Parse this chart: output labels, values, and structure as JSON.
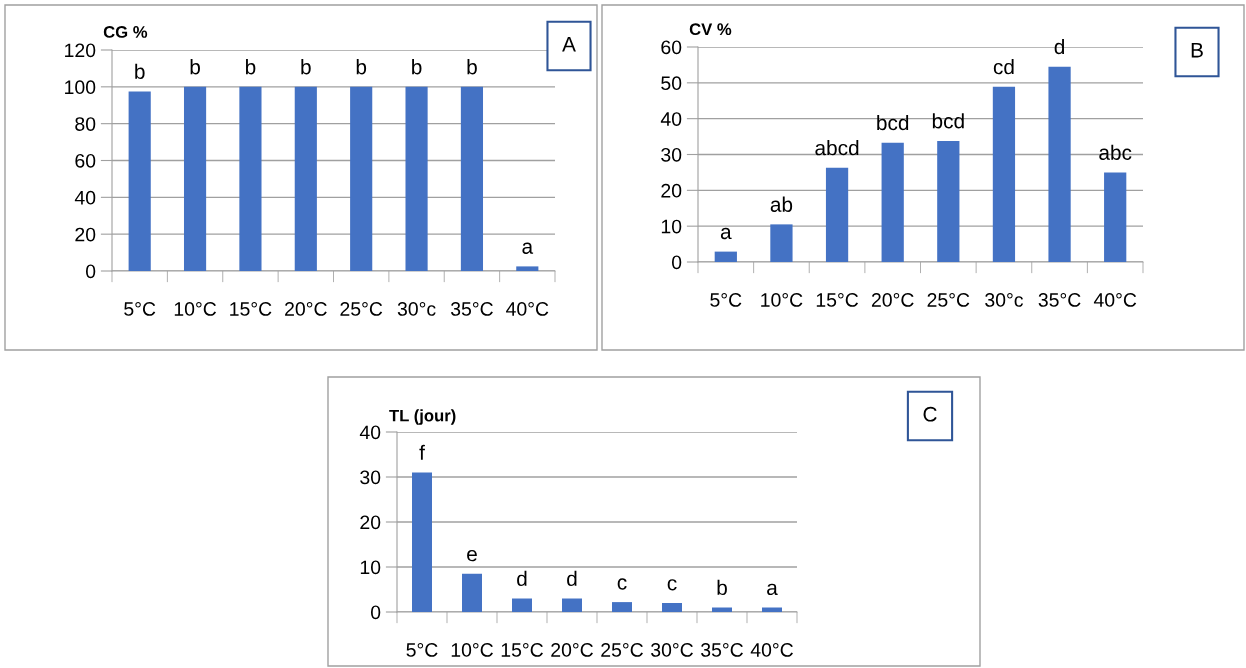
{
  "chart_data": [
    {
      "type": "bar",
      "ylabel": "CG %",
      "categories": [
        "5°C",
        "10°C",
        "15°C",
        "20°C",
        "25°C",
        "30°c",
        "35°C",
        "40°C"
      ],
      "values": [
        97.5,
        100,
        100,
        100,
        100,
        100,
        100,
        2.5
      ],
      "color": "#4472c4",
      "ylim": [
        0,
        120
      ],
      "yticks": [
        0,
        20,
        40,
        60,
        80,
        100,
        120
      ],
      "grid": "y",
      "annotations": [
        "A",
        {
          "text": "b",
          "x": "5°C",
          "y": 97.5
        },
        {
          "text": "b",
          "x": "10°C",
          "y": 100
        },
        {
          "text": "b",
          "x": "15°C",
          "y": 100
        },
        {
          "text": "b",
          "x": "20°C",
          "y": 100
        },
        {
          "text": "b",
          "x": "25°C",
          "y": 100
        },
        {
          "text": "b",
          "x": "30°c",
          "y": 100
        },
        {
          "text": "b",
          "x": "35°C",
          "y": 100
        },
        {
          "text": "a",
          "x": "40°C",
          "y": 2.5
        }
      ]
    },
    {
      "type": "bar",
      "ylabel": "CV %",
      "categories": [
        "5°C",
        "10°C",
        "15°C",
        "20°C",
        "25°C",
        "30°c",
        "35°C",
        "40°C"
      ],
      "values": [
        2.9,
        10.5,
        26.3,
        33.3,
        33.8,
        48.9,
        54.5,
        25
      ],
      "color": "#4472c4",
      "ylim": [
        0,
        60
      ],
      "yticks": [
        0,
        10,
        20,
        30,
        40,
        50,
        60
      ],
      "grid": "y",
      "annotations": [
        "B",
        {
          "text": "a",
          "x": "5°C",
          "y": 2.9
        },
        {
          "text": "ab",
          "x": "10°C",
          "y": 10.5
        },
        {
          "text": "abcd",
          "x": "15°C",
          "y": 26.3
        },
        {
          "text": "bcd",
          "x": "20°C",
          "y": 33.3
        },
        {
          "text": "bcd",
          "x": "25°C",
          "y": 33.8
        },
        {
          "text": "cd",
          "x": "30°c",
          "y": 48.9
        },
        {
          "text": "d",
          "x": "35°C",
          "y": 54.5
        },
        {
          "text": "abc",
          "x": "40°C",
          "y": 25
        }
      ]
    },
    {
      "type": "bar",
      "ylabel": "TL (jour)",
      "categories": [
        "5°C",
        "10°C",
        "15°C",
        "20°C",
        "25°C",
        "30°C",
        "35°C",
        "40°C"
      ],
      "values": [
        31,
        8.5,
        3,
        3,
        2.2,
        2,
        1,
        1
      ],
      "color": "#4472c4",
      "ylim": [
        0,
        40
      ],
      "yticks": [
        0,
        10,
        20,
        30,
        40
      ],
      "grid": "y",
      "annotations": [
        "C",
        {
          "text": "f",
          "x": "5°C",
          "y": 31
        },
        {
          "text": "e",
          "x": "10°C",
          "y": 8.5
        },
        {
          "text": "d",
          "x": "15°C",
          "y": 3
        },
        {
          "text": "d",
          "x": "20°C",
          "y": 3
        },
        {
          "text": "c",
          "x": "25°C",
          "y": 2.2
        },
        {
          "text": "c",
          "x": "30°C",
          "y": 2
        },
        {
          "text": "b",
          "x": "35°C",
          "y": 1
        },
        {
          "text": "a",
          "x": "40°C",
          "y": 1
        }
      ]
    }
  ]
}
